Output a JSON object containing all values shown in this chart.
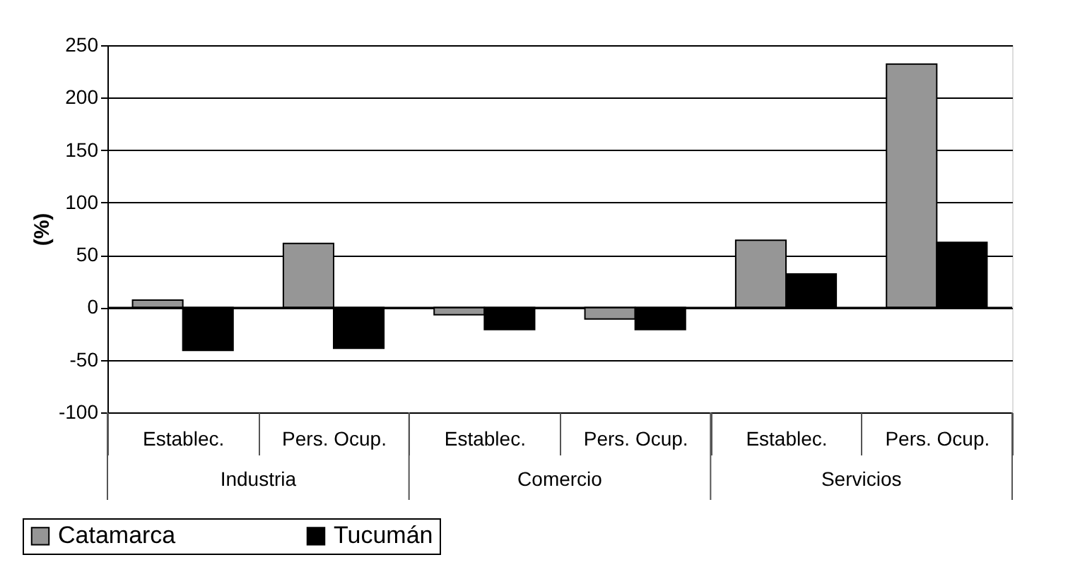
{
  "chart_data": {
    "type": "bar",
    "ylabel": "(%)",
    "categories": [
      "Establec.",
      "Pers. Ocup.",
      "Establec.",
      "Pers. Ocup.",
      "Establec.",
      "Pers. Ocup."
    ],
    "annotations": [
      "Industria",
      "Comercio",
      "Servicios"
    ],
    "series": [
      {
        "name": "Catamarca",
        "color": "#969696",
        "values": [
          7,
          61,
          -7,
          -11,
          64,
          232
        ]
      },
      {
        "name": "Tucumán",
        "color": "#000000",
        "values": [
          -41,
          -39,
          -21,
          -21,
          32,
          62
        ]
      }
    ],
    "ylim": [
      -100,
      250
    ],
    "yticks": [
      -100,
      -50,
      0,
      50,
      100,
      150,
      200,
      250
    ],
    "grid": "y",
    "legend": "bottom left"
  }
}
